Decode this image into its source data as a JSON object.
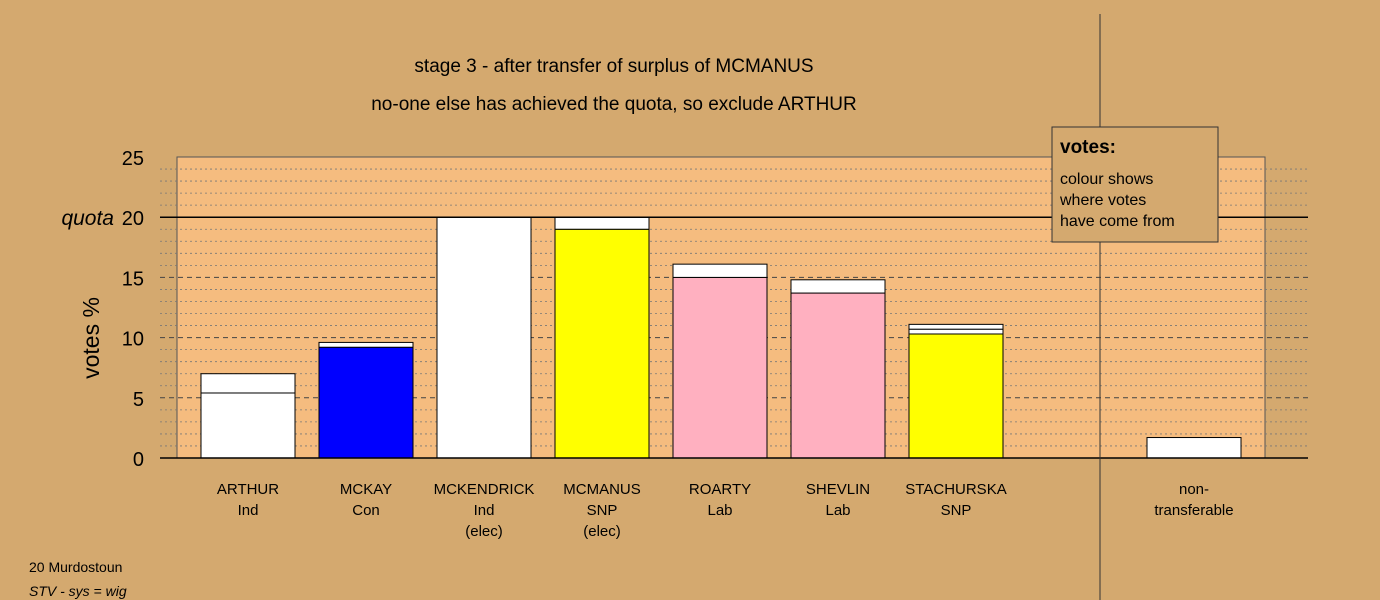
{
  "chart_data": {
    "type": "bar",
    "stacked": true,
    "title": "stage 3 - after transfer of surplus of MCMANUS",
    "subtitle": "no-one else has achieved the quota, so exclude ARTHUR",
    "ylabel": "votes %",
    "ylim": [
      0,
      25
    ],
    "yticks": [
      0,
      5,
      10,
      15,
      20,
      25
    ],
    "quota": 20,
    "quota_label": "quota",
    "grid": true,
    "categories": [
      {
        "name": "ARTHUR",
        "party": "Ind",
        "status": ""
      },
      {
        "name": "MCKAY",
        "party": "Con",
        "status": ""
      },
      {
        "name": "MCKENDRICK",
        "party": "Ind",
        "status": "(elec)"
      },
      {
        "name": "MCMANUS",
        "party": "SNP",
        "status": "(elec)"
      },
      {
        "name": "ROARTY",
        "party": "Lab",
        "status": ""
      },
      {
        "name": "SHEVLIN",
        "party": "Lab",
        "status": ""
      },
      {
        "name": "STACHURSKA",
        "party": "SNP",
        "status": ""
      }
    ],
    "segments": [
      [
        {
          "value": 5.4,
          "color": "#ffffff"
        },
        {
          "value": 1.6,
          "color": "#ffffff"
        }
      ],
      [
        {
          "value": 9.2,
          "color": "#0000ff"
        },
        {
          "value": 0.4,
          "color": "#ffffff"
        }
      ],
      [
        {
          "value": 20.0,
          "color": "#ffffff"
        }
      ],
      [
        {
          "value": 19.0,
          "color": "#ffff00"
        },
        {
          "value": 1.0,
          "color": "#ffffff"
        }
      ],
      [
        {
          "value": 15.0,
          "color": "#ffb0c0"
        },
        {
          "value": 1.1,
          "color": "#ffffff"
        }
      ],
      [
        {
          "value": 13.7,
          "color": "#ffb0c0"
        },
        {
          "value": 1.1,
          "color": "#ffffff"
        }
      ],
      [
        {
          "value": 10.3,
          "color": "#ffff00"
        },
        {
          "value": 0.4,
          "color": "#ffffff"
        },
        {
          "value": 0.4,
          "color": "#ffffff"
        }
      ]
    ],
    "nontransferable": {
      "label_line1": "non-",
      "label_line2": "transferable",
      "value": 1.7,
      "color": "#ffffff"
    },
    "legend": {
      "title": "votes:",
      "lines": [
        "colour shows",
        "where votes",
        "have come from"
      ],
      "position": "top-right"
    }
  },
  "footer": {
    "ward": "20 Murdostoun",
    "system": "STV - sys = wig"
  },
  "colors": {
    "background": "#d4a96f",
    "plot_area": "#f5bc7f",
    "legend_box": "#d4a96f"
  }
}
